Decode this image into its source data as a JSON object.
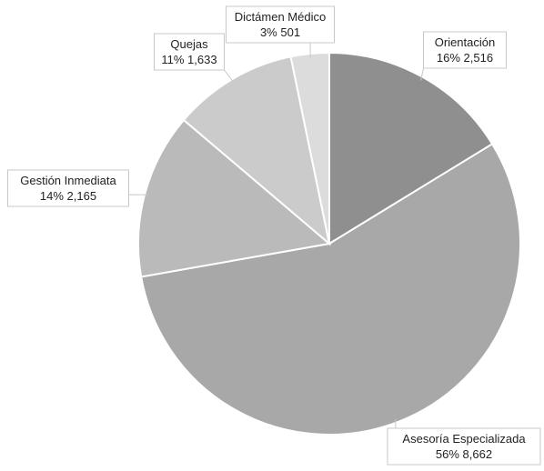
{
  "chart_data": {
    "type": "pie",
    "title": "",
    "start_angle_deg": 0,
    "direction": "clockwise",
    "slices": [
      {
        "label": "Orientación",
        "value": 2516,
        "percent_label": "16%",
        "value_label": "2,516",
        "color": "#8f8f8f"
      },
      {
        "label": "Asesoría Especializada",
        "value": 8662,
        "percent_label": "56%",
        "value_label": "8,662",
        "color": "#a8a8a8"
      },
      {
        "label": "Gestión Inmediata",
        "value": 2165,
        "percent_label": "14%",
        "value_label": "2,165",
        "color": "#bababa"
      },
      {
        "label": "Quejas",
        "value": 1633,
        "percent_label": "11%",
        "value_label": "1,633",
        "color": "#cbcbcb"
      },
      {
        "label": "Dictámen Médico",
        "value": 501,
        "percent_label": "3%",
        "value_label": "501",
        "color": "#dcdcdc"
      }
    ]
  }
}
